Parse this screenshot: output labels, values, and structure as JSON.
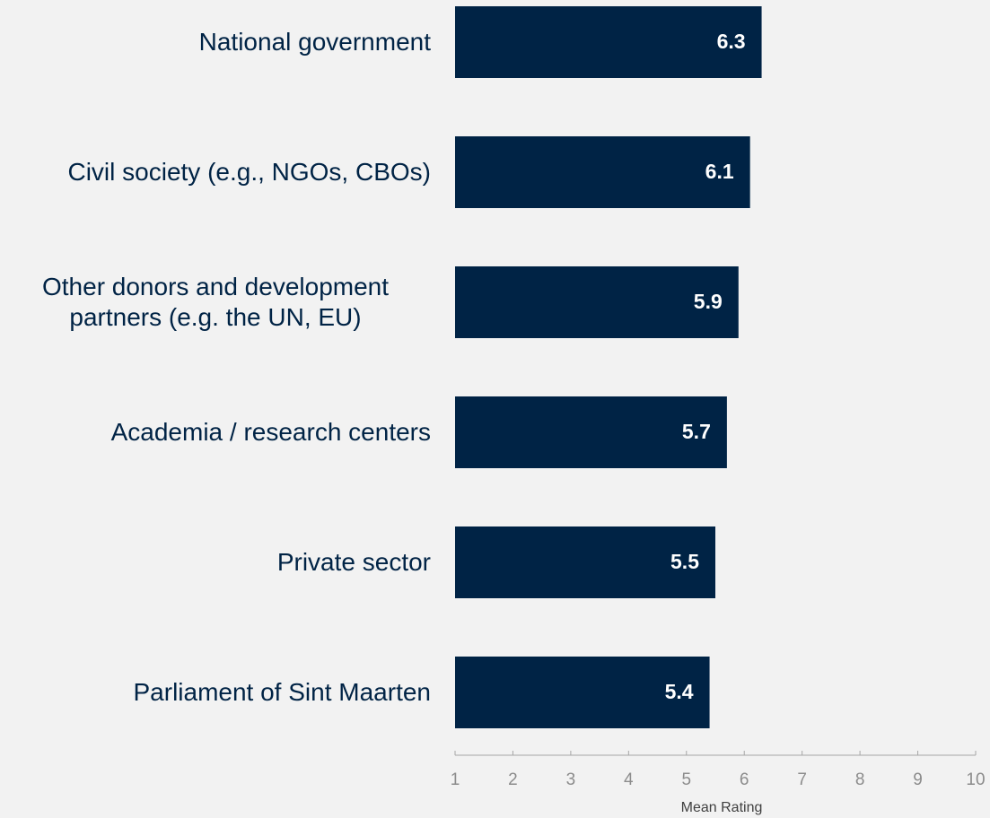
{
  "chart_data": {
    "type": "barh",
    "categories": [
      "National government",
      "Civil society (e.g., NGOs, CBOs)",
      "Other donors and development partners (e.g. the UN, EU)",
      "Academia / research centers",
      "Private sector",
      "Parliament of Sint Maarten"
    ],
    "values": [
      6.3,
      6.1,
      5.9,
      5.7,
      5.5,
      5.4
    ],
    "color": "#002345",
    "xlim": [
      1,
      10
    ],
    "xticks": [
      1,
      2,
      3,
      4,
      5,
      6,
      7,
      8,
      9,
      10
    ],
    "x_label": "Mean Rating"
  }
}
